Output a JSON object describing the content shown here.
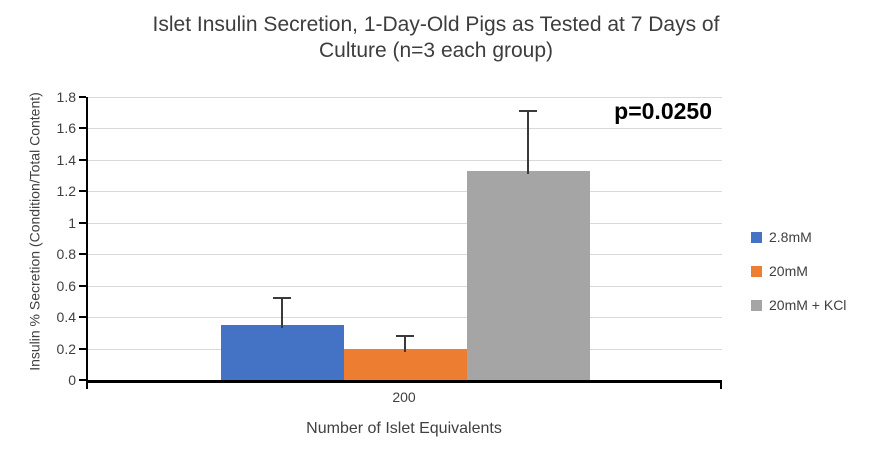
{
  "chart_data": {
    "type": "bar",
    "title": "Islet Insulin Secretion, 1-Day-Old Pigs as Tested at 7 Days of Culture (n=3 each group)",
    "title_lines": [
      "Islet Insulin Secretion, 1-Day-Old Pigs as Tested at 7 Days of",
      "Culture (n=3 each group)"
    ],
    "xlabel": "Number of Islet Equivalents",
    "ylabel": "Insulin % Secretion (Condition/Total Content)",
    "categories": [
      "200"
    ],
    "series": [
      {
        "name": "2.8mM",
        "color": "#4472C4",
        "values": [
          0.35
        ],
        "error_plus": [
          0.17
        ]
      },
      {
        "name": "20mM",
        "color": "#ED7D31",
        "values": [
          0.2
        ],
        "error_plus": [
          0.08
        ]
      },
      {
        "name": "20mM + KCl",
        "color": "#A5A5A5",
        "values": [
          1.33
        ],
        "error_plus": [
          0.38
        ]
      }
    ],
    "ylim": [
      0,
      1.8
    ],
    "ytick_step": 0.2,
    "yticks": [
      "0",
      "0.2",
      "0.4",
      "0.6",
      "0.8",
      "1",
      "1.2",
      "1.4",
      "1.6",
      "1.8"
    ],
    "grid": "horizontal",
    "legend_position": "right",
    "annotation": "p=0.0250"
  },
  "styles": {
    "grid_color": "#D9D9D9",
    "axis_color": "#000000",
    "text_color": "#404040",
    "annotation_color": "#000000",
    "background": "#FFFFFF"
  }
}
